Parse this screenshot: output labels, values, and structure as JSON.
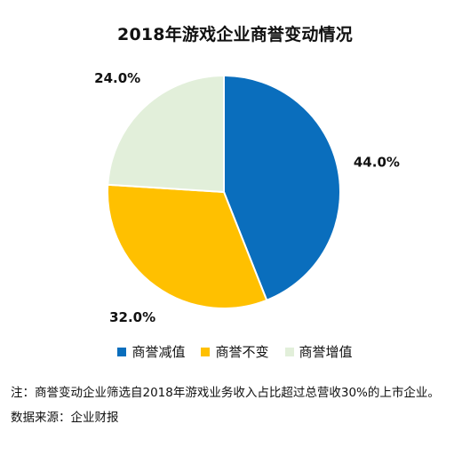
{
  "chart_data": {
    "type": "pie",
    "title": "2018年游戏企业商誉变动情况",
    "categories": [
      "商誉减值",
      "商誉不变",
      "商誉增值"
    ],
    "values": [
      44.0,
      32.0,
      24.0
    ],
    "data_labels": [
      "44.0%",
      "32.0%",
      "24.0%"
    ],
    "colors": [
      "#0A6EBD",
      "#FFC000",
      "#E2EFDA"
    ],
    "legend_position": "bottom",
    "note": "注：商誉变动企业筛选自2018年游戏业务收入占比超过总营收30%的上市企业。",
    "source": "数据来源：企业财报"
  }
}
